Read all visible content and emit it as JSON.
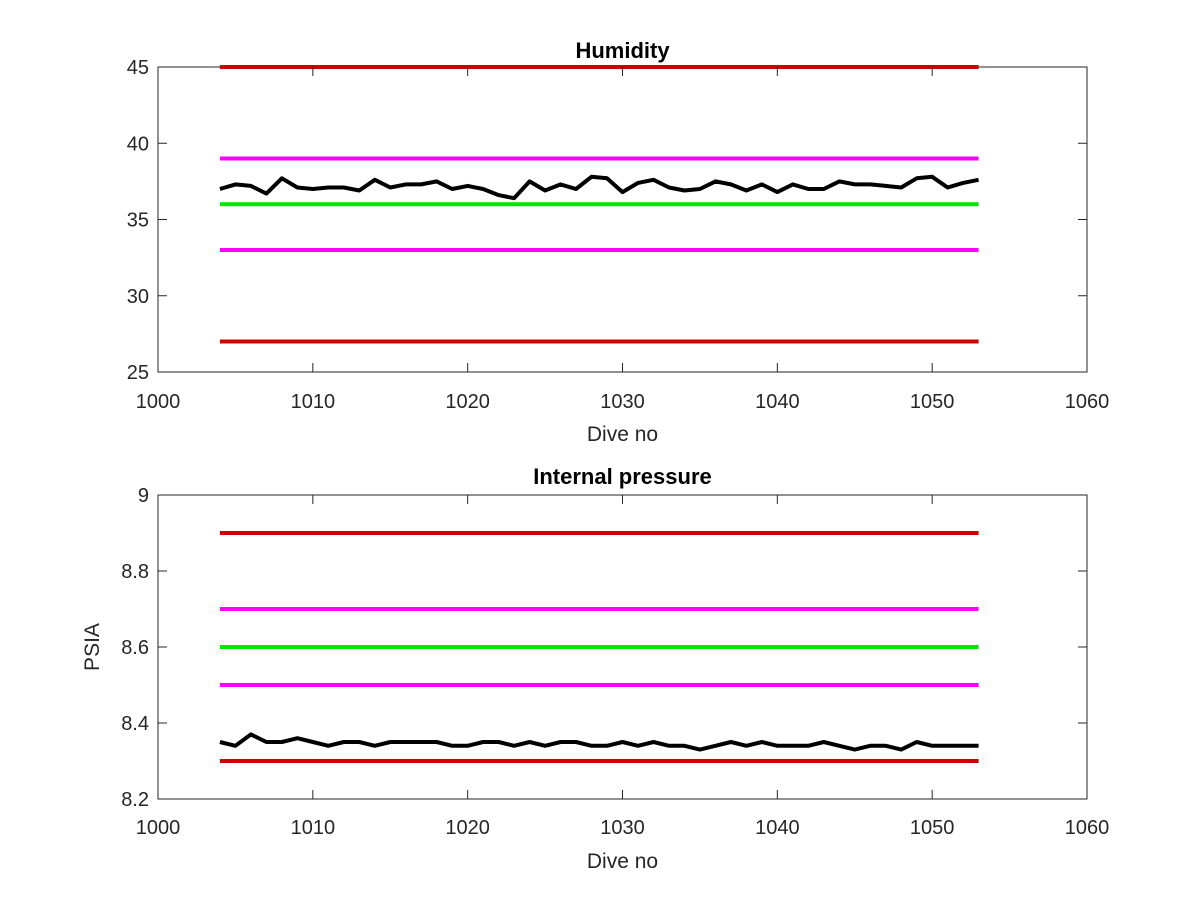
{
  "chart_data": [
    {
      "type": "line",
      "title": "Humidity",
      "xlabel": "Dive no",
      "ylabel": "",
      "xlim": [
        1000,
        1060
      ],
      "ylim": [
        25,
        45
      ],
      "xticks": [
        1000,
        1010,
        1020,
        1030,
        1040,
        1050,
        1060
      ],
      "xtick_labels": [
        "1000",
        "1010",
        "1020",
        "1030",
        "1040",
        "1050",
        "1060"
      ],
      "yticks": [
        25,
        30,
        35,
        40,
        45
      ],
      "ytick_labels": [
        "25",
        "30",
        "35",
        "40",
        "45"
      ],
      "grid": false,
      "limit_lines": [
        {
          "y": 45,
          "x": [
            1004,
            1053
          ],
          "color": "#d00000"
        },
        {
          "y": 39,
          "x": [
            1004,
            1053
          ],
          "color": "#ff00ff"
        },
        {
          "y": 36,
          "x": [
            1004,
            1053
          ],
          "color": "#00e600"
        },
        {
          "y": 33,
          "x": [
            1004,
            1053
          ],
          "color": "#ff00ff"
        },
        {
          "y": 27,
          "x": [
            1004,
            1053
          ],
          "color": "#d00000"
        }
      ],
      "series": [
        {
          "color": "#000000",
          "x": [
            1004,
            1005,
            1006,
            1007,
            1008,
            1009,
            1010,
            1011,
            1012,
            1013,
            1014,
            1015,
            1016,
            1017,
            1018,
            1019,
            1020,
            1021,
            1022,
            1023,
            1024,
            1025,
            1026,
            1027,
            1028,
            1029,
            1030,
            1031,
            1032,
            1033,
            1034,
            1035,
            1036,
            1037,
            1038,
            1039,
            1040,
            1041,
            1042,
            1043,
            1044,
            1045,
            1046,
            1047,
            1048,
            1049,
            1050,
            1051,
            1052,
            1053
          ],
          "values": [
            37.0,
            37.3,
            37.2,
            36.7,
            37.7,
            37.1,
            37.0,
            37.1,
            37.1,
            36.9,
            37.6,
            37.1,
            37.3,
            37.3,
            37.5,
            37.0,
            37.2,
            37.0,
            36.6,
            36.4,
            37.5,
            36.9,
            37.3,
            37.0,
            37.8,
            37.7,
            36.8,
            37.4,
            37.6,
            37.1,
            36.9,
            37.0,
            37.5,
            37.3,
            36.9,
            37.3,
            36.8,
            37.3,
            37.0,
            37.0,
            37.5,
            37.3,
            37.3,
            37.2,
            37.1,
            37.7,
            37.8,
            37.1,
            37.4,
            37.6
          ]
        }
      ]
    },
    {
      "type": "line",
      "title": "Internal pressure",
      "xlabel": "Dive no",
      "ylabel": "PSIA",
      "xlim": [
        1000,
        1060
      ],
      "ylim": [
        8.2,
        9.0
      ],
      "xticks": [
        1000,
        1010,
        1020,
        1030,
        1040,
        1050,
        1060
      ],
      "xtick_labels": [
        "1000",
        "1010",
        "1020",
        "1030",
        "1040",
        "1050",
        "1060"
      ],
      "yticks": [
        8.2,
        8.4,
        8.6,
        8.8,
        9.0
      ],
      "ytick_labels": [
        "8.2",
        "8.4",
        "8.6",
        "8.8",
        "9"
      ],
      "grid": false,
      "limit_lines": [
        {
          "y": 8.9,
          "x": [
            1004,
            1053
          ],
          "color": "#d00000"
        },
        {
          "y": 8.7,
          "x": [
            1004,
            1053
          ],
          "color": "#ff00ff"
        },
        {
          "y": 8.6,
          "x": [
            1004,
            1053
          ],
          "color": "#00e600"
        },
        {
          "y": 8.5,
          "x": [
            1004,
            1053
          ],
          "color": "#ff00ff"
        },
        {
          "y": 8.3,
          "x": [
            1004,
            1053
          ],
          "color": "#d00000"
        }
      ],
      "series": [
        {
          "color": "#000000",
          "x": [
            1004,
            1005,
            1006,
            1007,
            1008,
            1009,
            1010,
            1011,
            1012,
            1013,
            1014,
            1015,
            1016,
            1017,
            1018,
            1019,
            1020,
            1021,
            1022,
            1023,
            1024,
            1025,
            1026,
            1027,
            1028,
            1029,
            1030,
            1031,
            1032,
            1033,
            1034,
            1035,
            1036,
            1037,
            1038,
            1039,
            1040,
            1041,
            1042,
            1043,
            1044,
            1045,
            1046,
            1047,
            1048,
            1049,
            1050,
            1051,
            1052,
            1053
          ],
          "values": [
            8.35,
            8.34,
            8.37,
            8.35,
            8.35,
            8.36,
            8.35,
            8.34,
            8.35,
            8.35,
            8.34,
            8.35,
            8.35,
            8.35,
            8.35,
            8.34,
            8.34,
            8.35,
            8.35,
            8.34,
            8.35,
            8.34,
            8.35,
            8.35,
            8.34,
            8.34,
            8.35,
            8.34,
            8.35,
            8.34,
            8.34,
            8.33,
            8.34,
            8.35,
            8.34,
            8.35,
            8.34,
            8.34,
            8.34,
            8.35,
            8.34,
            8.33,
            8.34,
            8.34,
            8.33,
            8.35,
            8.34,
            8.34,
            8.34,
            8.34
          ]
        }
      ]
    }
  ]
}
